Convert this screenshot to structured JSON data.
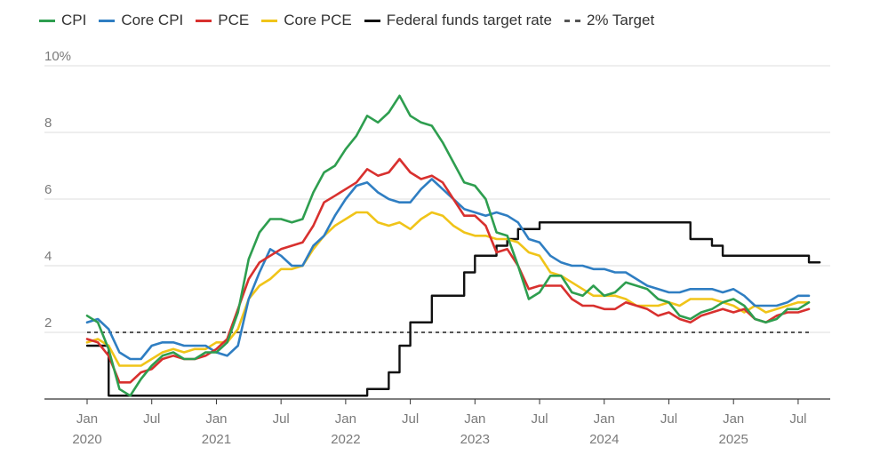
{
  "chart_data": {
    "type": "line",
    "y_unit_label": "10%",
    "ylim": [
      0,
      10
    ],
    "y_ticks": [
      {
        "value": 10,
        "label": "10%"
      },
      {
        "value": 8,
        "label": "8"
      },
      {
        "value": 6,
        "label": "6"
      },
      {
        "value": 4,
        "label": "4"
      },
      {
        "value": 2,
        "label": "2"
      }
    ],
    "x_ticks": [
      {
        "month": "2020-01",
        "label": "Jan",
        "year": "2020"
      },
      {
        "month": "2020-07",
        "label": "Jul",
        "year": ""
      },
      {
        "month": "2021-01",
        "label": "Jan",
        "year": "2021"
      },
      {
        "month": "2021-07",
        "label": "Jul",
        "year": ""
      },
      {
        "month": "2022-01",
        "label": "Jan",
        "year": "2022"
      },
      {
        "month": "2022-07",
        "label": "Jul",
        "year": ""
      },
      {
        "month": "2023-01",
        "label": "Jan",
        "year": "2023"
      },
      {
        "month": "2023-07",
        "label": "Jul",
        "year": ""
      },
      {
        "month": "2024-01",
        "label": "Jan",
        "year": "2024"
      },
      {
        "month": "2024-07",
        "label": "Jul",
        "year": ""
      },
      {
        "month": "2025-01",
        "label": "Jan",
        "year": "2025"
      },
      {
        "month": "2025-07",
        "label": "Jul",
        "year": ""
      }
    ],
    "x_start": "2020-01",
    "grid": "horizontal",
    "legend_position": "top-left",
    "series": [
      {
        "name": "CPI",
        "color": "#2e9e4f",
        "style": "solid",
        "values": [
          2.5,
          2.3,
          1.5,
          0.3,
          0.1,
          0.6,
          1.0,
          1.3,
          1.4,
          1.2,
          1.2,
          1.4,
          1.4,
          1.7,
          2.6,
          4.2,
          5.0,
          5.4,
          5.4,
          5.3,
          5.4,
          6.2,
          6.8,
          7.0,
          7.5,
          7.9,
          8.5,
          8.3,
          8.6,
          9.1,
          8.5,
          8.3,
          8.2,
          7.7,
          7.1,
          6.5,
          6.4,
          6.0,
          5.0,
          4.9,
          4.0,
          3.0,
          3.2,
          3.7,
          3.7,
          3.2,
          3.1,
          3.4,
          3.1,
          3.2,
          3.5,
          3.4,
          3.3,
          3.0,
          2.9,
          2.5,
          2.4,
          2.6,
          2.7,
          2.9,
          3.0,
          2.8,
          2.4,
          2.3,
          2.4,
          2.7,
          2.7,
          2.9
        ]
      },
      {
        "name": "Core CPI",
        "color": "#2f7ec2",
        "style": "solid",
        "values": [
          2.3,
          2.4,
          2.1,
          1.4,
          1.2,
          1.2,
          1.6,
          1.7,
          1.7,
          1.6,
          1.6,
          1.6,
          1.4,
          1.3,
          1.6,
          3.0,
          3.8,
          4.5,
          4.3,
          4.0,
          4.0,
          4.6,
          4.9,
          5.5,
          6.0,
          6.4,
          6.5,
          6.2,
          6.0,
          5.9,
          5.9,
          6.3,
          6.6,
          6.3,
          6.0,
          5.7,
          5.6,
          5.5,
          5.6,
          5.5,
          5.3,
          4.8,
          4.7,
          4.3,
          4.1,
          4.0,
          4.0,
          3.9,
          3.9,
          3.8,
          3.8,
          3.6,
          3.4,
          3.3,
          3.2,
          3.2,
          3.3,
          3.3,
          3.3,
          3.2,
          3.3,
          3.1,
          2.8,
          2.8,
          2.8,
          2.9,
          3.1,
          3.1
        ]
      },
      {
        "name": "PCE",
        "color": "#d8302e",
        "style": "solid",
        "values": [
          1.8,
          1.7,
          1.3,
          0.5,
          0.5,
          0.8,
          0.9,
          1.2,
          1.3,
          1.2,
          1.2,
          1.3,
          1.5,
          1.8,
          2.7,
          3.6,
          4.1,
          4.3,
          4.5,
          4.6,
          4.7,
          5.2,
          5.9,
          6.1,
          6.3,
          6.5,
          6.9,
          6.7,
          6.8,
          7.2,
          6.8,
          6.6,
          6.7,
          6.5,
          6.0,
          5.5,
          5.5,
          5.2,
          4.4,
          4.5,
          4.0,
          3.3,
          3.4,
          3.4,
          3.4,
          3.0,
          2.8,
          2.8,
          2.7,
          2.7,
          2.9,
          2.8,
          2.7,
          2.5,
          2.6,
          2.4,
          2.3,
          2.5,
          2.6,
          2.7,
          2.6,
          2.7,
          2.4,
          2.3,
          2.5,
          2.6,
          2.6,
          2.7
        ]
      },
      {
        "name": "Core PCE",
        "color": "#f0c419",
        "style": "solid",
        "values": [
          1.7,
          1.8,
          1.6,
          1.0,
          1.0,
          1.0,
          1.2,
          1.4,
          1.5,
          1.4,
          1.5,
          1.5,
          1.7,
          1.7,
          2.1,
          3.0,
          3.4,
          3.6,
          3.9,
          3.9,
          4.0,
          4.5,
          4.9,
          5.2,
          5.4,
          5.6,
          5.6,
          5.3,
          5.2,
          5.3,
          5.1,
          5.4,
          5.6,
          5.5,
          5.2,
          5.0,
          4.9,
          4.9,
          4.8,
          4.8,
          4.7,
          4.4,
          4.3,
          3.8,
          3.7,
          3.5,
          3.3,
          3.1,
          3.1,
          3.1,
          3.0,
          2.8,
          2.8,
          2.8,
          2.9,
          2.8,
          3.0,
          3.0,
          3.0,
          2.9,
          2.8,
          2.6,
          2.8,
          2.6,
          2.7,
          2.8,
          2.9,
          2.9
        ]
      },
      {
        "name": "Federal funds target rate",
        "color": "#111111",
        "style": "step",
        "values": [
          1.6,
          1.6,
          0.1,
          0.1,
          0.1,
          0.1,
          0.1,
          0.1,
          0.1,
          0.1,
          0.1,
          0.1,
          0.1,
          0.1,
          0.1,
          0.1,
          0.1,
          0.1,
          0.1,
          0.1,
          0.1,
          0.1,
          0.1,
          0.1,
          0.1,
          0.1,
          0.3,
          0.3,
          0.8,
          1.6,
          2.3,
          2.3,
          3.1,
          3.1,
          3.1,
          3.8,
          4.3,
          4.3,
          4.6,
          4.8,
          5.1,
          5.1,
          5.3,
          5.3,
          5.3,
          5.3,
          5.3,
          5.3,
          5.3,
          5.3,
          5.3,
          5.3,
          5.3,
          5.3,
          5.3,
          5.3,
          4.8,
          4.8,
          4.6,
          4.3,
          4.3,
          4.3,
          4.3,
          4.3,
          4.3,
          4.3,
          4.3,
          4.1
        ]
      },
      {
        "name": "2% Target",
        "color": "#555555",
        "style": "dashed",
        "constant": 2
      }
    ]
  }
}
